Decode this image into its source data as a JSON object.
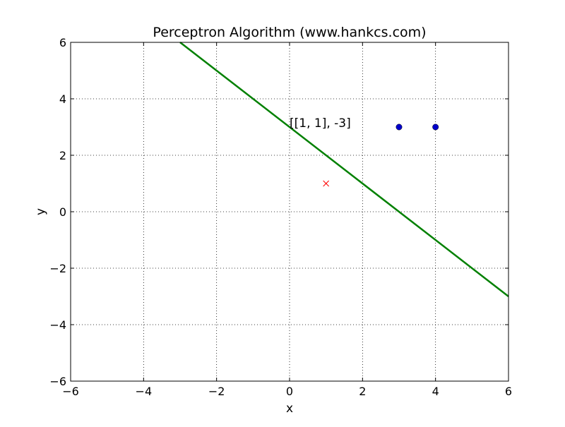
{
  "chart_data": {
    "type": "scatter",
    "title": "Perceptron Algorithm (www.hankcs.com)",
    "xlabel": "x",
    "ylabel": "y",
    "xlim": [
      -6,
      6
    ],
    "ylim": [
      -6,
      6
    ],
    "xticks": [
      -6,
      -4,
      -2,
      0,
      2,
      4,
      6
    ],
    "yticks": [
      -6,
      -4,
      -2,
      0,
      2,
      4,
      6
    ],
    "xtick_labels": [
      "−6",
      "−4",
      "−2",
      "0",
      "2",
      "4",
      "6"
    ],
    "ytick_labels": [
      "−6",
      "−4",
      "−2",
      "0",
      "2",
      "4",
      "6"
    ],
    "grid": true,
    "grid_style": "dotted",
    "series": [
      {
        "marker": "circle",
        "color": "#0000cc",
        "points": [
          {
            "x": 3,
            "y": 3
          },
          {
            "x": 4,
            "y": 3
          }
        ]
      },
      {
        "marker": "x",
        "color": "#ff0000",
        "points": [
          {
            "x": 1,
            "y": 1
          }
        ]
      }
    ],
    "lines": [
      {
        "color": "#008000",
        "points": [
          {
            "x": -3,
            "y": 6
          },
          {
            "x": 6,
            "y": -3
          }
        ]
      }
    ],
    "annotations": [
      {
        "text": "[[1, 1], -3]",
        "x": 0,
        "y": 3
      }
    ]
  }
}
